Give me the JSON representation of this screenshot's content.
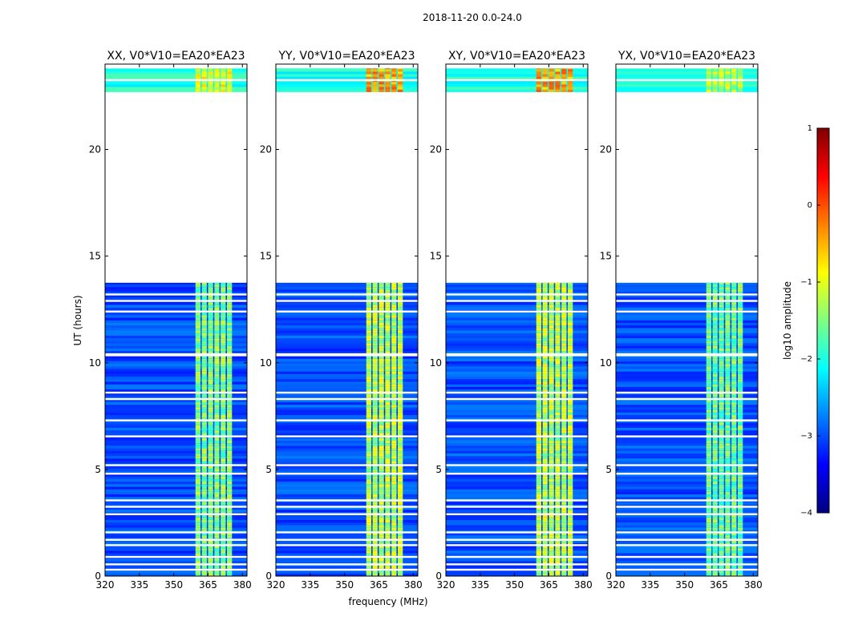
{
  "chart_data": {
    "type": "heatmap",
    "title": "2018-11-20 0.0-24.0",
    "xlabel": "frequency (MHz)",
    "ylabel": "UT (hours)",
    "xlim": [
      320,
      382
    ],
    "ylim": [
      0,
      24
    ],
    "x_ticks": [
      320,
      335,
      350,
      365,
      380
    ],
    "y_ticks": [
      0,
      5,
      10,
      15,
      20
    ],
    "gap_hours": [
      13.75,
      22.7
    ],
    "rfi_band_mhz": [
      359.5,
      376
    ],
    "panels": [
      {
        "title": "XX, V0*V10=EA20*EA23",
        "band_level": -1.5,
        "bg_level": -3.0,
        "top_level": -2.0,
        "top_band_level": -1.0
      },
      {
        "title": "YY, V0*V10=EA20*EA23",
        "band_level": -1.2,
        "bg_level": -3.0,
        "top_level": -2.0,
        "top_band_level": -0.4
      },
      {
        "title": "XY, V0*V10=EA20*EA23",
        "band_level": -1.2,
        "bg_level": -3.0,
        "top_level": -2.0,
        "top_band_level": -0.4
      },
      {
        "title": "YX, V0*V10=EA20*EA23",
        "band_level": -1.6,
        "bg_level": -3.0,
        "top_level": -2.0,
        "top_band_level": -1.2
      }
    ],
    "colorbar": {
      "label": "log10 amplitude",
      "range": [
        -4,
        1
      ],
      "ticks": [
        "1",
        "0",
        "−1",
        "−2",
        "−3",
        "−4"
      ],
      "colormap": "jet"
    }
  }
}
